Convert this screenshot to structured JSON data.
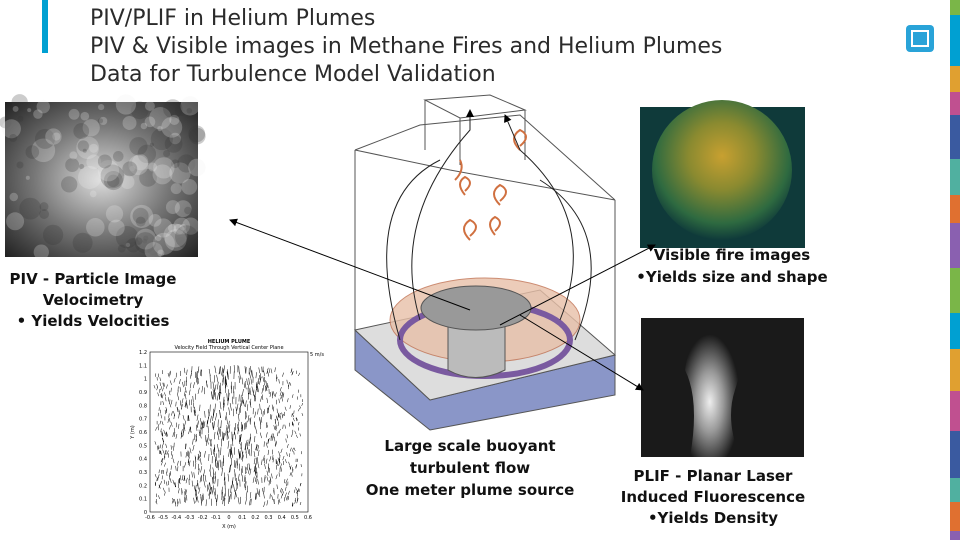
{
  "header": {
    "title_lines": [
      "PIV/PLIF in Helium Plumes",
      "PIV & Visible images in Methane Fires and Helium Plumes",
      "Data for Turbulence Model Validation"
    ]
  },
  "captions": {
    "piv": [
      "PIV - Particle Image",
      "Velocimetry",
      "• Yields Velocities"
    ],
    "visible": [
      "Visible fire images",
      "•Yields size and shape"
    ],
    "plif": [
      "PLIF - Planar Laser",
      "Induced Fluorescence",
      "•Yields Density"
    ],
    "center": [
      "Large scale buoyant",
      "turbulent flow",
      "One meter plume source"
    ]
  },
  "velocity_plot": {
    "title": "HELIUM PLUME",
    "subtitle": "Velocity Field Through Vertical Center Plane",
    "x_label": "X (m)",
    "y_label": "Y (m)",
    "scale_label": "5 m/s",
    "xticks": [
      "-0.6",
      "-0.5",
      "-0.4",
      "-0.3",
      "-0.2",
      "-0.1",
      "0",
      "0.1",
      "0.2",
      "0.3",
      "0.4",
      "0.5",
      "0.6"
    ],
    "yticks": [
      "1.2",
      "1.1",
      "1",
      "0.9",
      "0.8",
      "0.7",
      "0.6",
      "0.5",
      "0.4",
      "0.3",
      "0.2",
      "0.1",
      "0"
    ]
  }
}
